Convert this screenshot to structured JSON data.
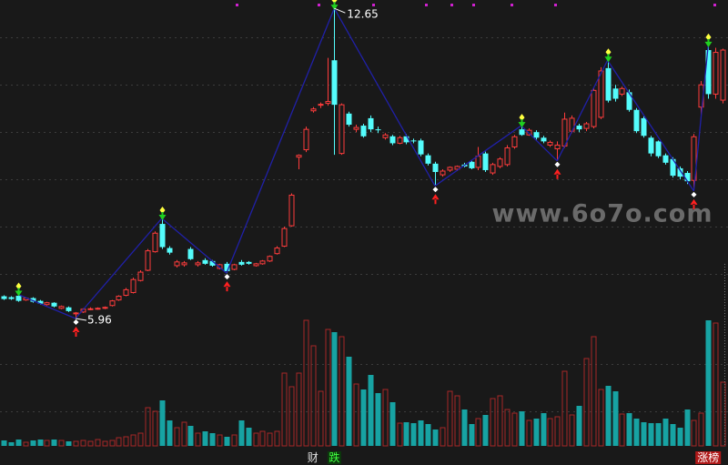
{
  "chart_data": {
    "type": "candlestick",
    "open": [
      6.44,
      6.42,
      6.45,
      6.36,
      6.4,
      6.34,
      6.26,
      6.3,
      6.18,
      6.2,
      6.06,
      6.1,
      6.16,
      6.17,
      6.18,
      6.24,
      6.36,
      6.46,
      6.52,
      6.78,
      7.0,
      7.4,
      8.0,
      7.48,
      7.1,
      7.12,
      7.46,
      7.12,
      7.22,
      7.2,
      7.04,
      7.14,
      7.02,
      7.18,
      7.18,
      7.1,
      7.14,
      7.2,
      7.36,
      7.52,
      7.96,
      9.44,
      9.6,
      10.44,
      10.56,
      10.6,
      11.53,
      9.52,
      10.38,
      10.04,
      10.12,
      10.28,
      10.04,
      9.86,
      9.89,
      9.74,
      9.89,
      9.8,
      9.8,
      9.48,
      9.3,
      9.06,
      9.16,
      9.18,
      9.28,
      9.34,
      9.22,
      9.52,
      9.1,
      9.24,
      9.28,
      9.66,
      10.04,
      9.92,
      9.98,
      9.86,
      9.7,
      9.62,
      9.68,
      10.0,
      10.12,
      10.06,
      10.1,
      10.3,
      11.36,
      10.92,
      10.8,
      10.84,
      10.46,
      10.28,
      9.86,
      9.78,
      9.48,
      9.4,
      9.2,
      9.1,
      8.94,
      10.52,
      11.75,
      10.8,
      10.67
    ],
    "high": [
      6.46,
      6.44,
      6.48,
      6.42,
      6.42,
      6.36,
      6.32,
      6.31,
      6.24,
      6.22,
      6.1,
      6.18,
      6.2,
      6.2,
      6.22,
      6.36,
      6.46,
      6.62,
      6.84,
      7.0,
      7.46,
      7.84,
      8.12,
      7.52,
      7.22,
      7.2,
      7.5,
      7.2,
      7.26,
      7.22,
      7.14,
      7.18,
      7.14,
      7.22,
      7.2,
      7.16,
      7.22,
      7.32,
      7.52,
      7.94,
      8.66,
      9.5,
      10.1,
      10.52,
      10.62,
      11.58,
      12.65,
      10.6,
      10.42,
      10.14,
      10.16,
      10.34,
      10.1,
      9.96,
      9.92,
      9.9,
      9.94,
      9.84,
      9.84,
      9.52,
      9.34,
      9.18,
      9.24,
      9.26,
      9.32,
      9.36,
      9.66,
      9.56,
      9.32,
      9.44,
      9.7,
      9.92,
      10.12,
      10.06,
      10.02,
      9.9,
      9.8,
      9.78,
      10.4,
      10.34,
      10.16,
      10.2,
      10.94,
      11.38,
      11.53,
      11.0,
      10.96,
      10.9,
      10.5,
      10.32,
      9.9,
      9.8,
      9.52,
      9.44,
      9.24,
      9.14,
      9.94,
      11.08,
      11.85,
      11.8,
      11.78
    ],
    "low": [
      6.36,
      6.36,
      6.32,
      6.34,
      6.3,
      6.26,
      6.24,
      6.2,
      6.16,
      6.1,
      5.96,
      6.08,
      6.14,
      6.15,
      6.16,
      6.22,
      6.34,
      6.44,
      6.5,
      6.76,
      6.98,
      7.38,
      7.46,
      7.34,
      7.06,
      7.08,
      7.22,
      7.08,
      7.12,
      7.08,
      7.02,
      6.94,
      7.0,
      7.1,
      7.12,
      7.08,
      7.12,
      7.18,
      7.34,
      7.5,
      7.94,
      9.18,
      9.55,
      10.4,
      10.5,
      10.55,
      9.49,
      9.49,
      10.1,
      9.98,
      9.86,
      9.98,
      9.96,
      9.82,
      9.7,
      9.72,
      9.72,
      9.74,
      9.46,
      9.26,
      8.82,
      9.02,
      9.12,
      9.14,
      9.22,
      9.18,
      9.16,
      9.12,
      9.06,
      9.2,
      9.24,
      9.62,
      9.9,
      9.9,
      9.82,
      9.74,
      9.66,
      9.36,
      9.64,
      9.96,
      9.98,
      10.0,
      10.06,
      10.26,
      10.62,
      10.64,
      10.76,
      10.42,
      9.96,
      9.86,
      9.46,
      9.42,
      9.28,
      9.0,
      8.96,
      8.86,
      8.71,
      10.36,
      10.7,
      10.7,
      10.6
    ],
    "close": [
      6.38,
      6.38,
      6.34,
      6.4,
      6.32,
      6.28,
      6.3,
      6.22,
      6.22,
      6.12,
      6.08,
      6.16,
      6.17,
      6.18,
      6.2,
      6.34,
      6.44,
      6.58,
      6.8,
      6.96,
      7.42,
      7.8,
      7.5,
      7.38,
      7.18,
      7.16,
      7.24,
      7.16,
      7.14,
      7.1,
      7.12,
      6.98,
      7.12,
      7.12,
      7.14,
      7.14,
      7.2,
      7.3,
      7.48,
      7.9,
      8.62,
      9.48,
      10.04,
      10.48,
      10.58,
      10.64,
      10.57,
      10.57,
      10.14,
      10.08,
      9.89,
      10.04,
      10.02,
      9.92,
      9.74,
      9.86,
      9.76,
      9.78,
      9.5,
      9.3,
      9.12,
      9.14,
      9.22,
      9.24,
      9.24,
      9.2,
      9.46,
      9.16,
      9.28,
      9.4,
      9.64,
      9.88,
      9.92,
      10.02,
      9.86,
      9.78,
      9.76,
      9.7,
      10.26,
      10.28,
      10.04,
      10.16,
      10.88,
      11.3,
      10.66,
      10.7,
      10.92,
      10.46,
      10.0,
      9.9,
      9.52,
      9.46,
      9.32,
      9.04,
      9.02,
      8.92,
      9.88,
      11.0,
      10.8,
      11.7,
      11.75
    ],
    "volume": [
      6,
      4,
      7,
      4,
      6,
      7,
      6,
      7,
      6,
      5,
      5,
      6,
      5,
      7,
      5,
      6,
      9,
      10,
      12,
      14,
      42,
      38,
      50,
      28,
      20,
      26,
      22,
      14,
      16,
      14,
      12,
      10,
      12,
      28,
      20,
      14,
      16,
      14,
      16,
      80,
      65,
      80,
      138,
      110,
      60,
      128,
      125,
      120,
      98,
      68,
      62,
      78,
      58,
      62,
      48,
      25,
      26,
      25,
      28,
      24,
      18,
      20,
      60,
      55,
      40,
      24,
      30,
      34,
      52,
      55,
      40,
      36,
      38,
      28,
      30,
      36,
      30,
      32,
      82,
      34,
      44,
      96,
      120,
      62,
      66,
      60,
      35,
      36,
      30,
      26,
      25,
      25,
      30,
      24,
      20,
      40,
      28,
      36,
      138,
      135,
      70
    ],
    "ylim": [
      5.96,
      12.83
    ],
    "ygrid": [
      6.92,
      7.94,
      8.96,
      9.98,
      11.0,
      12.02
    ],
    "vlim": [
      0,
      140
    ],
    "vgrid": [
      38,
      90
    ],
    "zigzag": [
      {
        "index": 2,
        "kind": "high"
      },
      {
        "index": 10,
        "kind": "low"
      },
      {
        "index": 22,
        "kind": "high"
      },
      {
        "index": 31,
        "kind": "low"
      },
      {
        "index": 46,
        "kind": "high"
      },
      {
        "index": 60,
        "kind": "low"
      },
      {
        "index": 72,
        "kind": "high"
      },
      {
        "index": 77,
        "kind": "low"
      },
      {
        "index": 84,
        "kind": "high"
      },
      {
        "index": 96,
        "kind": "low"
      },
      {
        "index": 98,
        "kind": "high"
      }
    ],
    "up_color": "#ff3c3c",
    "down_color": "#54fcfc",
    "volume_up_color": "#a82828",
    "volume_down_color": "#17a3a3",
    "zigzag_color": "#2020a8",
    "markers": [
      {
        "index": 43,
        "text": "财",
        "color": "#e0e0e0",
        "box": "#191919"
      },
      {
        "index": 46,
        "text": "跌",
        "color": "#40ff40",
        "box": "#0c3a0c"
      },
      {
        "index": 98,
        "text": "涨榜",
        "color": "#ffffff",
        "box": "#b01818"
      }
    ],
    "watermark": "www.6o7o.com"
  }
}
